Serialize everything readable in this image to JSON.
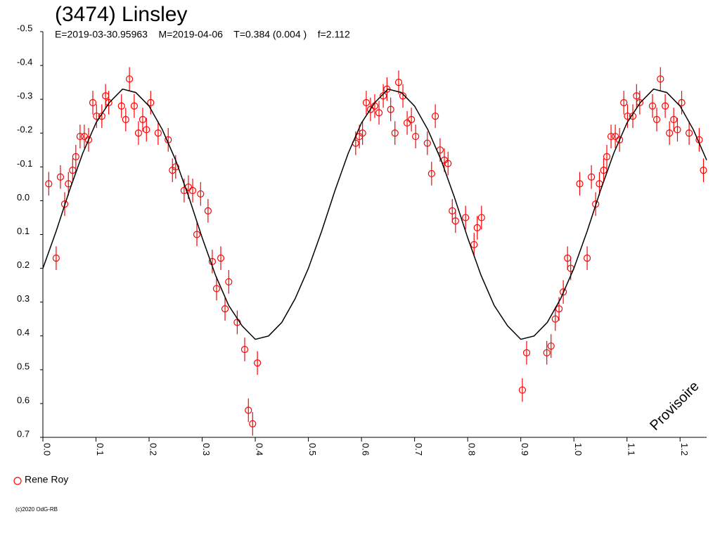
{
  "chart_data": {
    "type": "scatter",
    "title": "(3474) Linsley",
    "subtitle": "E=2019-03-30.95963    M=2019-04-06    T=0.384 (0.004 )    f=2.112",
    "annotation": "Provisoire",
    "footer": "(c)2020 OdG-RB",
    "xlim": [
      0,
      1.25
    ],
    "ylim": [
      -0.5,
      0.7
    ],
    "y_inverted": true,
    "xticks": [
      {
        "value": 0,
        "label": "0.0"
      },
      0.1,
      0.2,
      0.3,
      0.4,
      0.5,
      0.6,
      0.7,
      0.8,
      0.9,
      {
        "value": 1,
        "label": "1.0"
      },
      1.1,
      1.2
    ],
    "yticks": [
      -0.5,
      -0.4,
      -0.3,
      -0.2,
      -0.1,
      {
        "value": 0,
        "label": "0.0"
      },
      0.1,
      0.2,
      0.3,
      0.4,
      0.5,
      0.6,
      0.7
    ],
    "error": 0.035,
    "series": [
      {
        "name": "Rene Roy",
        "color": "#ff0000",
        "x": [
          0.011,
          0.025,
          0.033,
          0.041,
          0.048,
          0.056,
          0.062,
          0.07,
          0.078,
          0.086,
          0.094,
          0.101,
          0.111,
          0.118,
          0.124,
          0.148,
          0.156,
          0.163,
          0.172,
          0.18,
          0.188,
          0.195,
          0.203,
          0.217,
          0.236,
          0.244,
          0.25,
          0.266,
          0.274,
          0.282,
          0.29,
          0.297,
          0.311,
          0.319,
          0.327,
          0.335,
          0.343,
          0.35,
          0.366,
          0.38,
          0.387,
          0.395,
          0.404,
          0.589,
          0.596,
          0.602,
          0.609,
          0.617,
          0.625,
          0.633,
          0.641,
          0.648,
          0.655,
          0.663,
          0.67,
          0.678,
          0.686,
          0.694,
          0.702,
          0.724,
          0.732,
          0.739,
          0.748,
          0.756,
          0.763,
          0.771,
          0.777,
          0.796,
          0.812,
          0.818,
          0.826,
          0.903,
          0.911,
          0.949,
          0.957,
          0.965,
          0.972,
          0.98,
          0.988,
          0.994,
          1.011,
          1.025,
          1.033,
          1.041,
          1.048,
          1.056,
          1.062,
          1.07,
          1.078,
          1.086,
          1.094,
          1.101,
          1.111,
          1.118,
          1.124,
          1.148,
          1.156,
          1.163,
          1.172,
          1.18,
          1.188,
          1.195,
          1.203,
          1.217,
          1.236,
          1.244
        ],
        "values": [
          -0.05,
          0.17,
          -0.07,
          0.01,
          -0.05,
          -0.09,
          -0.13,
          -0.19,
          -0.19,
          -0.18,
          -0.29,
          -0.25,
          -0.25,
          -0.31,
          -0.29,
          -0.28,
          -0.24,
          -0.36,
          -0.28,
          -0.2,
          -0.24,
          -0.21,
          -0.29,
          -0.2,
          -0.18,
          -0.09,
          -0.1,
          -0.03,
          -0.04,
          -0.03,
          0.1,
          -0.02,
          0.03,
          0.18,
          0.26,
          0.17,
          0.32,
          0.24,
          0.36,
          0.44,
          0.62,
          0.66,
          0.48,
          -0.17,
          -0.19,
          -0.2,
          -0.29,
          -0.27,
          -0.28,
          -0.26,
          -0.31,
          -0.33,
          -0.27,
          -0.2,
          -0.35,
          -0.31,
          -0.23,
          -0.24,
          -0.19,
          -0.17,
          -0.08,
          -0.25,
          -0.15,
          -0.12,
          -0.11,
          0.03,
          0.06,
          0.05,
          0.13,
          0.08,
          0.05,
          0.56,
          0.45,
          0.45,
          0.43,
          0.35,
          0.32,
          0.27,
          0.17,
          0.2,
          -0.05,
          0.17,
          -0.07,
          0.01,
          -0.05,
          -0.09,
          -0.13,
          -0.19,
          -0.19,
          -0.18,
          -0.29,
          -0.25,
          -0.25,
          -0.31,
          -0.29,
          -0.28,
          -0.24,
          -0.36,
          -0.28,
          -0.2,
          -0.24,
          -0.21,
          -0.29,
          -0.2,
          -0.18,
          -0.09
        ]
      },
      {
        "type": "line",
        "color": "#000000",
        "x": [
          0,
          0.025,
          0.05,
          0.075,
          0.1,
          0.125,
          0.15,
          0.175,
          0.2,
          0.225,
          0.25,
          0.275,
          0.3,
          0.325,
          0.35,
          0.375,
          0.4,
          0.425,
          0.45,
          0.475,
          0.5,
          0.525,
          0.55,
          0.575,
          0.6,
          0.625,
          0.65,
          0.675,
          0.7,
          0.725,
          0.75,
          0.775,
          0.8,
          0.825,
          0.85,
          0.875,
          0.9,
          0.925,
          0.95,
          0.975,
          1,
          1.025,
          1.05,
          1.075,
          1.1,
          1.125,
          1.15,
          1.175,
          1.2,
          1.225,
          1.25
        ],
        "values": [
          0.2,
          0.09,
          -0.03,
          -0.14,
          -0.23,
          -0.29,
          -0.33,
          -0.32,
          -0.28,
          -0.21,
          -0.12,
          -0.01,
          0.11,
          0.22,
          0.31,
          0.37,
          0.41,
          0.4,
          0.36,
          0.29,
          0.2,
          0.09,
          -0.03,
          -0.14,
          -0.23,
          -0.29,
          -0.33,
          -0.32,
          -0.28,
          -0.21,
          -0.12,
          -0.01,
          0.11,
          0.22,
          0.31,
          0.37,
          0.41,
          0.4,
          0.36,
          0.29,
          0.2,
          0.09,
          -0.03,
          -0.14,
          -0.23,
          -0.29,
          -0.33,
          -0.32,
          -0.28,
          -0.21,
          -0.12
        ]
      }
    ]
  }
}
